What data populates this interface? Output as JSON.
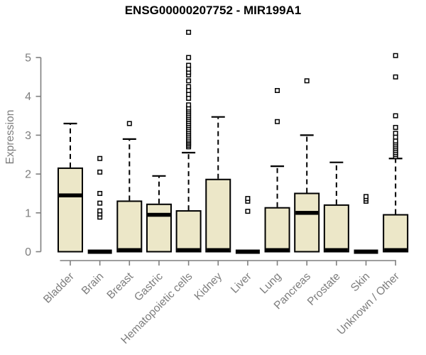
{
  "chart_data": {
    "type": "boxplot",
    "title": "ENSG00000207752 - MIR199A1",
    "ylabel": "Expression",
    "xlabel": "",
    "ylim": [
      0,
      5.7
    ],
    "yticks": [
      "0",
      "1",
      "2",
      "3",
      "4",
      "5"
    ],
    "grid": false,
    "legend": "none",
    "categories": [
      "Bladder",
      "Brain",
      "Breast",
      "Gastric",
      "Hematopoietic cells",
      "Kidney",
      "Liver",
      "Lung",
      "Pancreas",
      "Prostate",
      "Skin",
      "Unknown / Other"
    ],
    "series": [
      {
        "name": "Bladder",
        "whisker_low": 0,
        "q1": 0,
        "median": 1.45,
        "q3": 2.15,
        "whisker_high": 3.3,
        "outliers": []
      },
      {
        "name": "Brain",
        "whisker_low": 0,
        "q1": 0,
        "median": 0,
        "q3": 0,
        "whisker_high": 0,
        "outliers": [
          0.89,
          0.97,
          1.05,
          1.25,
          1.5,
          2.05,
          2.4
        ]
      },
      {
        "name": "Breast",
        "whisker_low": 0,
        "q1": 0,
        "median": 0,
        "q3": 1.3,
        "whisker_high": 2.9,
        "outliers": [
          3.3
        ]
      },
      {
        "name": "Gastric",
        "whisker_low": 0,
        "q1": 0,
        "median": 0.95,
        "q3": 1.22,
        "whisker_high": 1.95,
        "outliers": []
      },
      {
        "name": "Hematopoietic cells",
        "whisker_low": 0,
        "q1": 0,
        "median": 0,
        "q3": 1.05,
        "whisker_high": 2.55,
        "outliers": [
          2.7,
          2.74,
          2.78,
          2.82,
          2.86,
          2.9,
          2.95,
          3.0,
          3.05,
          3.1,
          3.15,
          3.2,
          3.25,
          3.3,
          3.35,
          3.4,
          3.45,
          3.5,
          3.55,
          3.6,
          3.65,
          3.7,
          3.78,
          3.95,
          4.05,
          4.15,
          4.25,
          4.4,
          4.55,
          4.62,
          4.7,
          4.8,
          5.0,
          5.65
        ]
      },
      {
        "name": "Kidney",
        "whisker_low": 0,
        "q1": 0,
        "median": 0,
        "q3": 1.86,
        "whisker_high": 3.47,
        "outliers": []
      },
      {
        "name": "Liver",
        "whisker_low": 0,
        "q1": 0,
        "median": 0,
        "q3": 0,
        "whisker_high": 0,
        "outliers": [
          1.04,
          1.3,
          1.37
        ]
      },
      {
        "name": "Lung",
        "whisker_low": 0,
        "q1": 0,
        "median": 0,
        "q3": 1.13,
        "whisker_high": 2.2,
        "outliers": [
          3.35,
          4.15
        ]
      },
      {
        "name": "Pancreas",
        "whisker_low": 0,
        "q1": 0,
        "median": 1.0,
        "q3": 1.5,
        "whisker_high": 3.0,
        "outliers": [
          4.4
        ]
      },
      {
        "name": "Prostate",
        "whisker_low": 0,
        "q1": 0,
        "median": 0,
        "q3": 1.2,
        "whisker_high": 2.3,
        "outliers": []
      },
      {
        "name": "Skin",
        "whisker_low": 0,
        "q1": 0,
        "median": 0,
        "q3": 0,
        "whisker_high": 0,
        "outliers": [
          1.3,
          1.36,
          1.42
        ]
      },
      {
        "name": "Unknown / Other",
        "whisker_low": 0,
        "q1": 0,
        "median": 0,
        "q3": 0.95,
        "whisker_high": 2.4,
        "outliers": [
          2.45,
          2.5,
          2.55,
          2.6,
          2.65,
          2.7,
          2.75,
          2.8,
          2.85,
          2.95,
          3.05,
          3.2,
          3.5,
          4.5,
          5.05
        ]
      }
    ]
  },
  "colors": {
    "box_fill": "#ECE7C8",
    "box_border": "#000000",
    "median": "#000000",
    "whisker": "#000000",
    "outlier_stroke": "#000000",
    "outlier_fill": "#ffffff",
    "axis": "#7f7f7f",
    "label_text": "#7d7d7d",
    "title_text": "#000000",
    "background": "#ffffff"
  }
}
